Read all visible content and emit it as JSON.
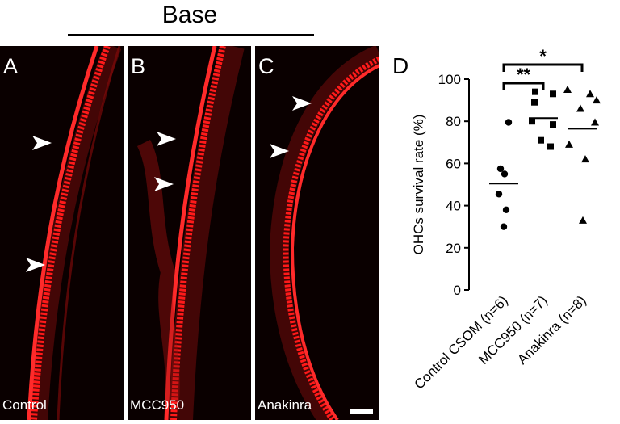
{
  "header": {
    "title": "Base"
  },
  "panels": [
    {
      "letter": "A",
      "name": "Control"
    },
    {
      "letter": "B",
      "name": "MCC950"
    },
    {
      "letter": "C",
      "name": "Anakinra"
    }
  ],
  "colors": {
    "stain": "#ff1a1a",
    "background": "#0a0000",
    "arrowhead": "#ffffff",
    "markers": "#000000"
  },
  "chart_data": {
    "type": "scatter",
    "panel_letter": "D",
    "ylabel": "OHCs survival rate (%)",
    "ylim": [
      0,
      100
    ],
    "yticks": [
      0,
      20,
      40,
      60,
      80,
      100
    ],
    "categories": [
      "Control CSOM (n=6)",
      "MCC950 (n=7)",
      "Anakinra (n=8)"
    ],
    "series": [
      {
        "category": "Control CSOM (n=6)",
        "marker": "circle",
        "values": [
          79.5,
          57.5,
          55,
          45.5,
          38,
          30
        ],
        "mean": 50.5
      },
      {
        "category": "MCC950 (n=7)",
        "marker": "square",
        "values": [
          94,
          89,
          93,
          78.5,
          80,
          71,
          68
        ],
        "mean": 81.5
      },
      {
        "category": "Anakinra (n=8)",
        "marker": "triangle",
        "values": [
          95,
          93,
          90,
          86,
          79.5,
          69,
          62,
          33
        ],
        "mean": 76.5
      }
    ],
    "significance": [
      {
        "from": 0,
        "to": 1,
        "label": "**"
      },
      {
        "from": 0,
        "to": 2,
        "label": "*"
      }
    ]
  }
}
